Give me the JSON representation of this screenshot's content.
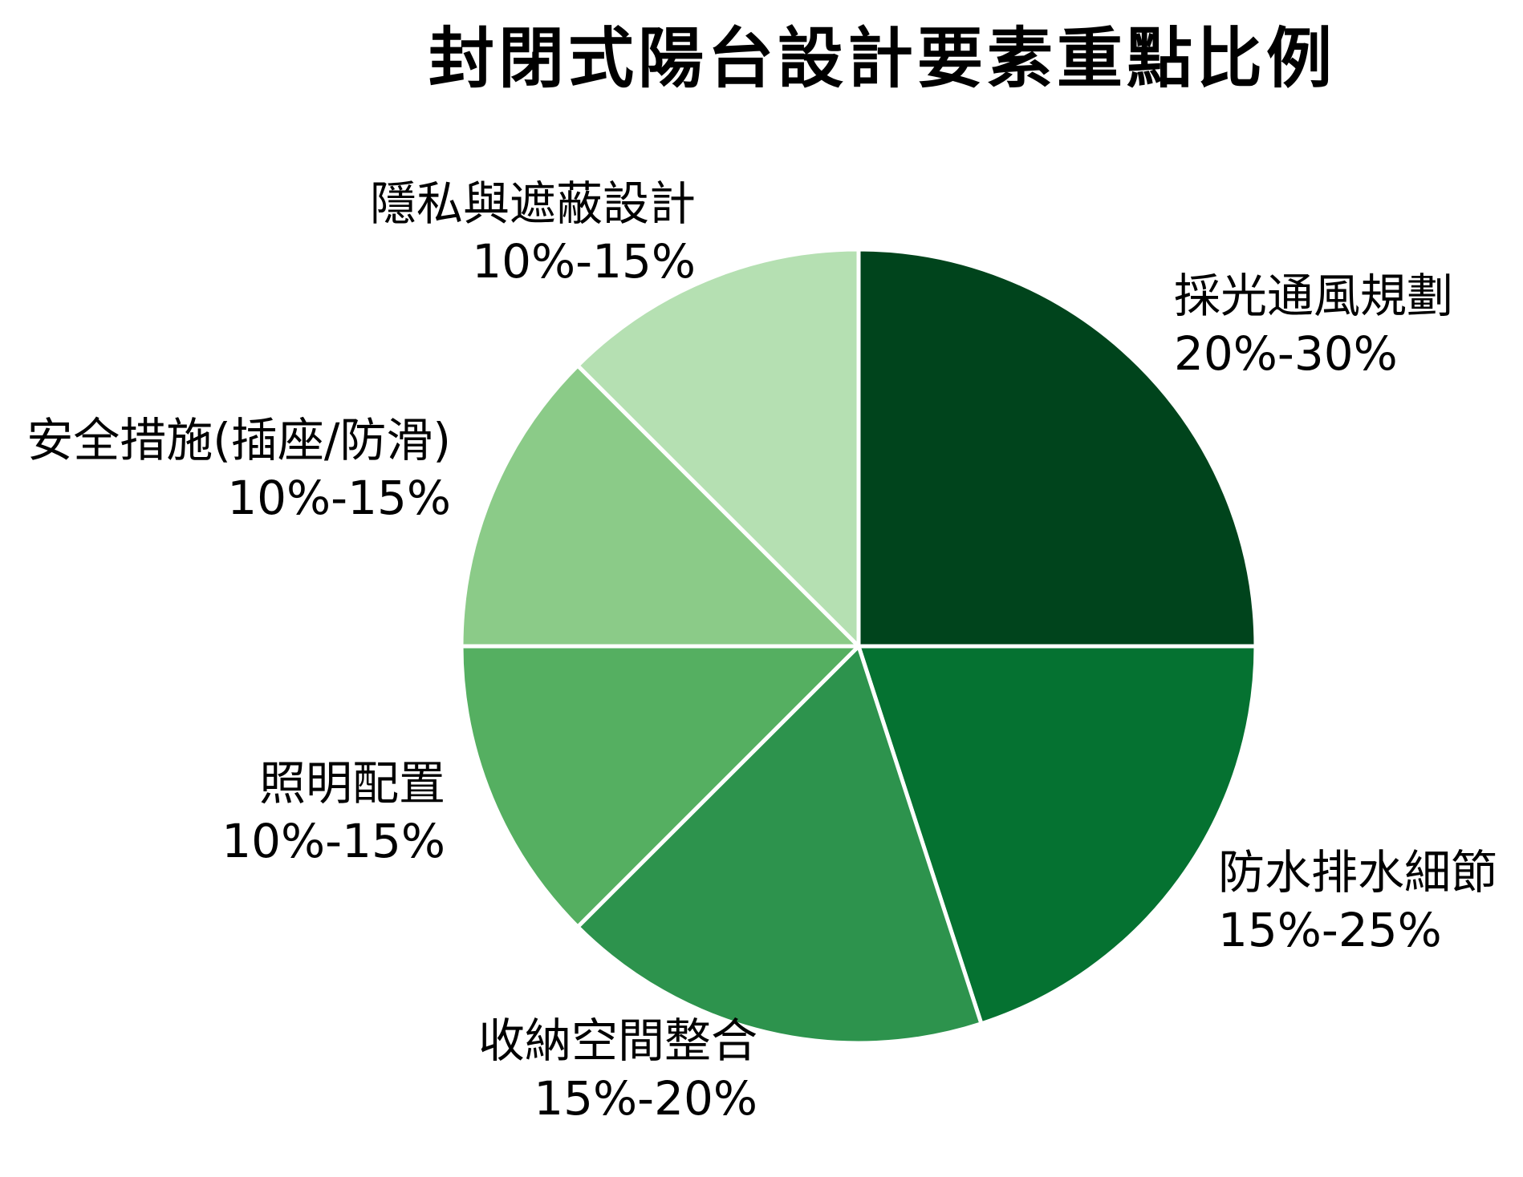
{
  "title": "封閉式陽台設計要素重點比例",
  "chart_data": {
    "type": "pie",
    "title": "封閉式陽台設計要素重點比例",
    "direction": "clockwise",
    "start_angle": "12-o'clock",
    "legend_position": "none",
    "labels_outside": true,
    "separator_color": "#ffffff",
    "slices": [
      {
        "id": "lighting-ventilation-planning",
        "label": "採光通風規劃",
        "range": "20%-30%",
        "value": 25,
        "color": "#00441c"
      },
      {
        "id": "waterproof-drainage-details",
        "label": "防水排水細節",
        "range": "15%-25%",
        "value": 20,
        "color": "#057231"
      },
      {
        "id": "storage-space-integration",
        "label": "收納空間整合",
        "range": "15%-20%",
        "value": 17.5,
        "color": "#2d934d"
      },
      {
        "id": "lighting-configuration",
        "label": "照明配置",
        "range": "10%-15%",
        "value": 12.5,
        "color": "#55af61"
      },
      {
        "id": "safety-measures-outlet-antislip",
        "label": "安全措施(插座/防滑)",
        "range": "10%-15%",
        "value": 12.5,
        "color": "#8bcb88"
      },
      {
        "id": "privacy-screening-design",
        "label": "隱私與遮蔽設計",
        "range": "10%-15%",
        "value": 12.5,
        "color": "#b5e0b2"
      }
    ]
  }
}
